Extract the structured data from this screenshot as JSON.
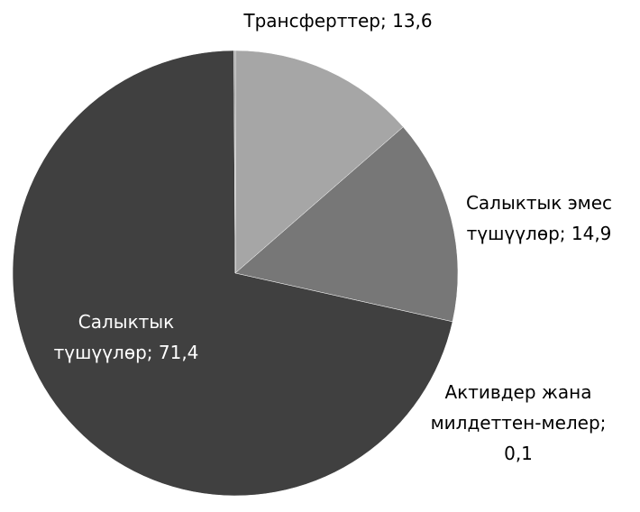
{
  "chart_data": {
    "type": "pie",
    "categories": [
      "Трансферттер;",
      "Салыктык эмес түшүүлөр;",
      "Салыктык түшүүлөр;",
      "Активдер жана милдеттен-мелер;"
    ],
    "values": [
      13.6,
      14.9,
      71.4,
      0.1
    ],
    "value_labels": [
      "13,6",
      "14,9",
      "71,4",
      "0,1"
    ],
    "colors": [
      "#a6a6a6",
      "#777777",
      "#404040",
      "#8c8c8c"
    ]
  }
}
